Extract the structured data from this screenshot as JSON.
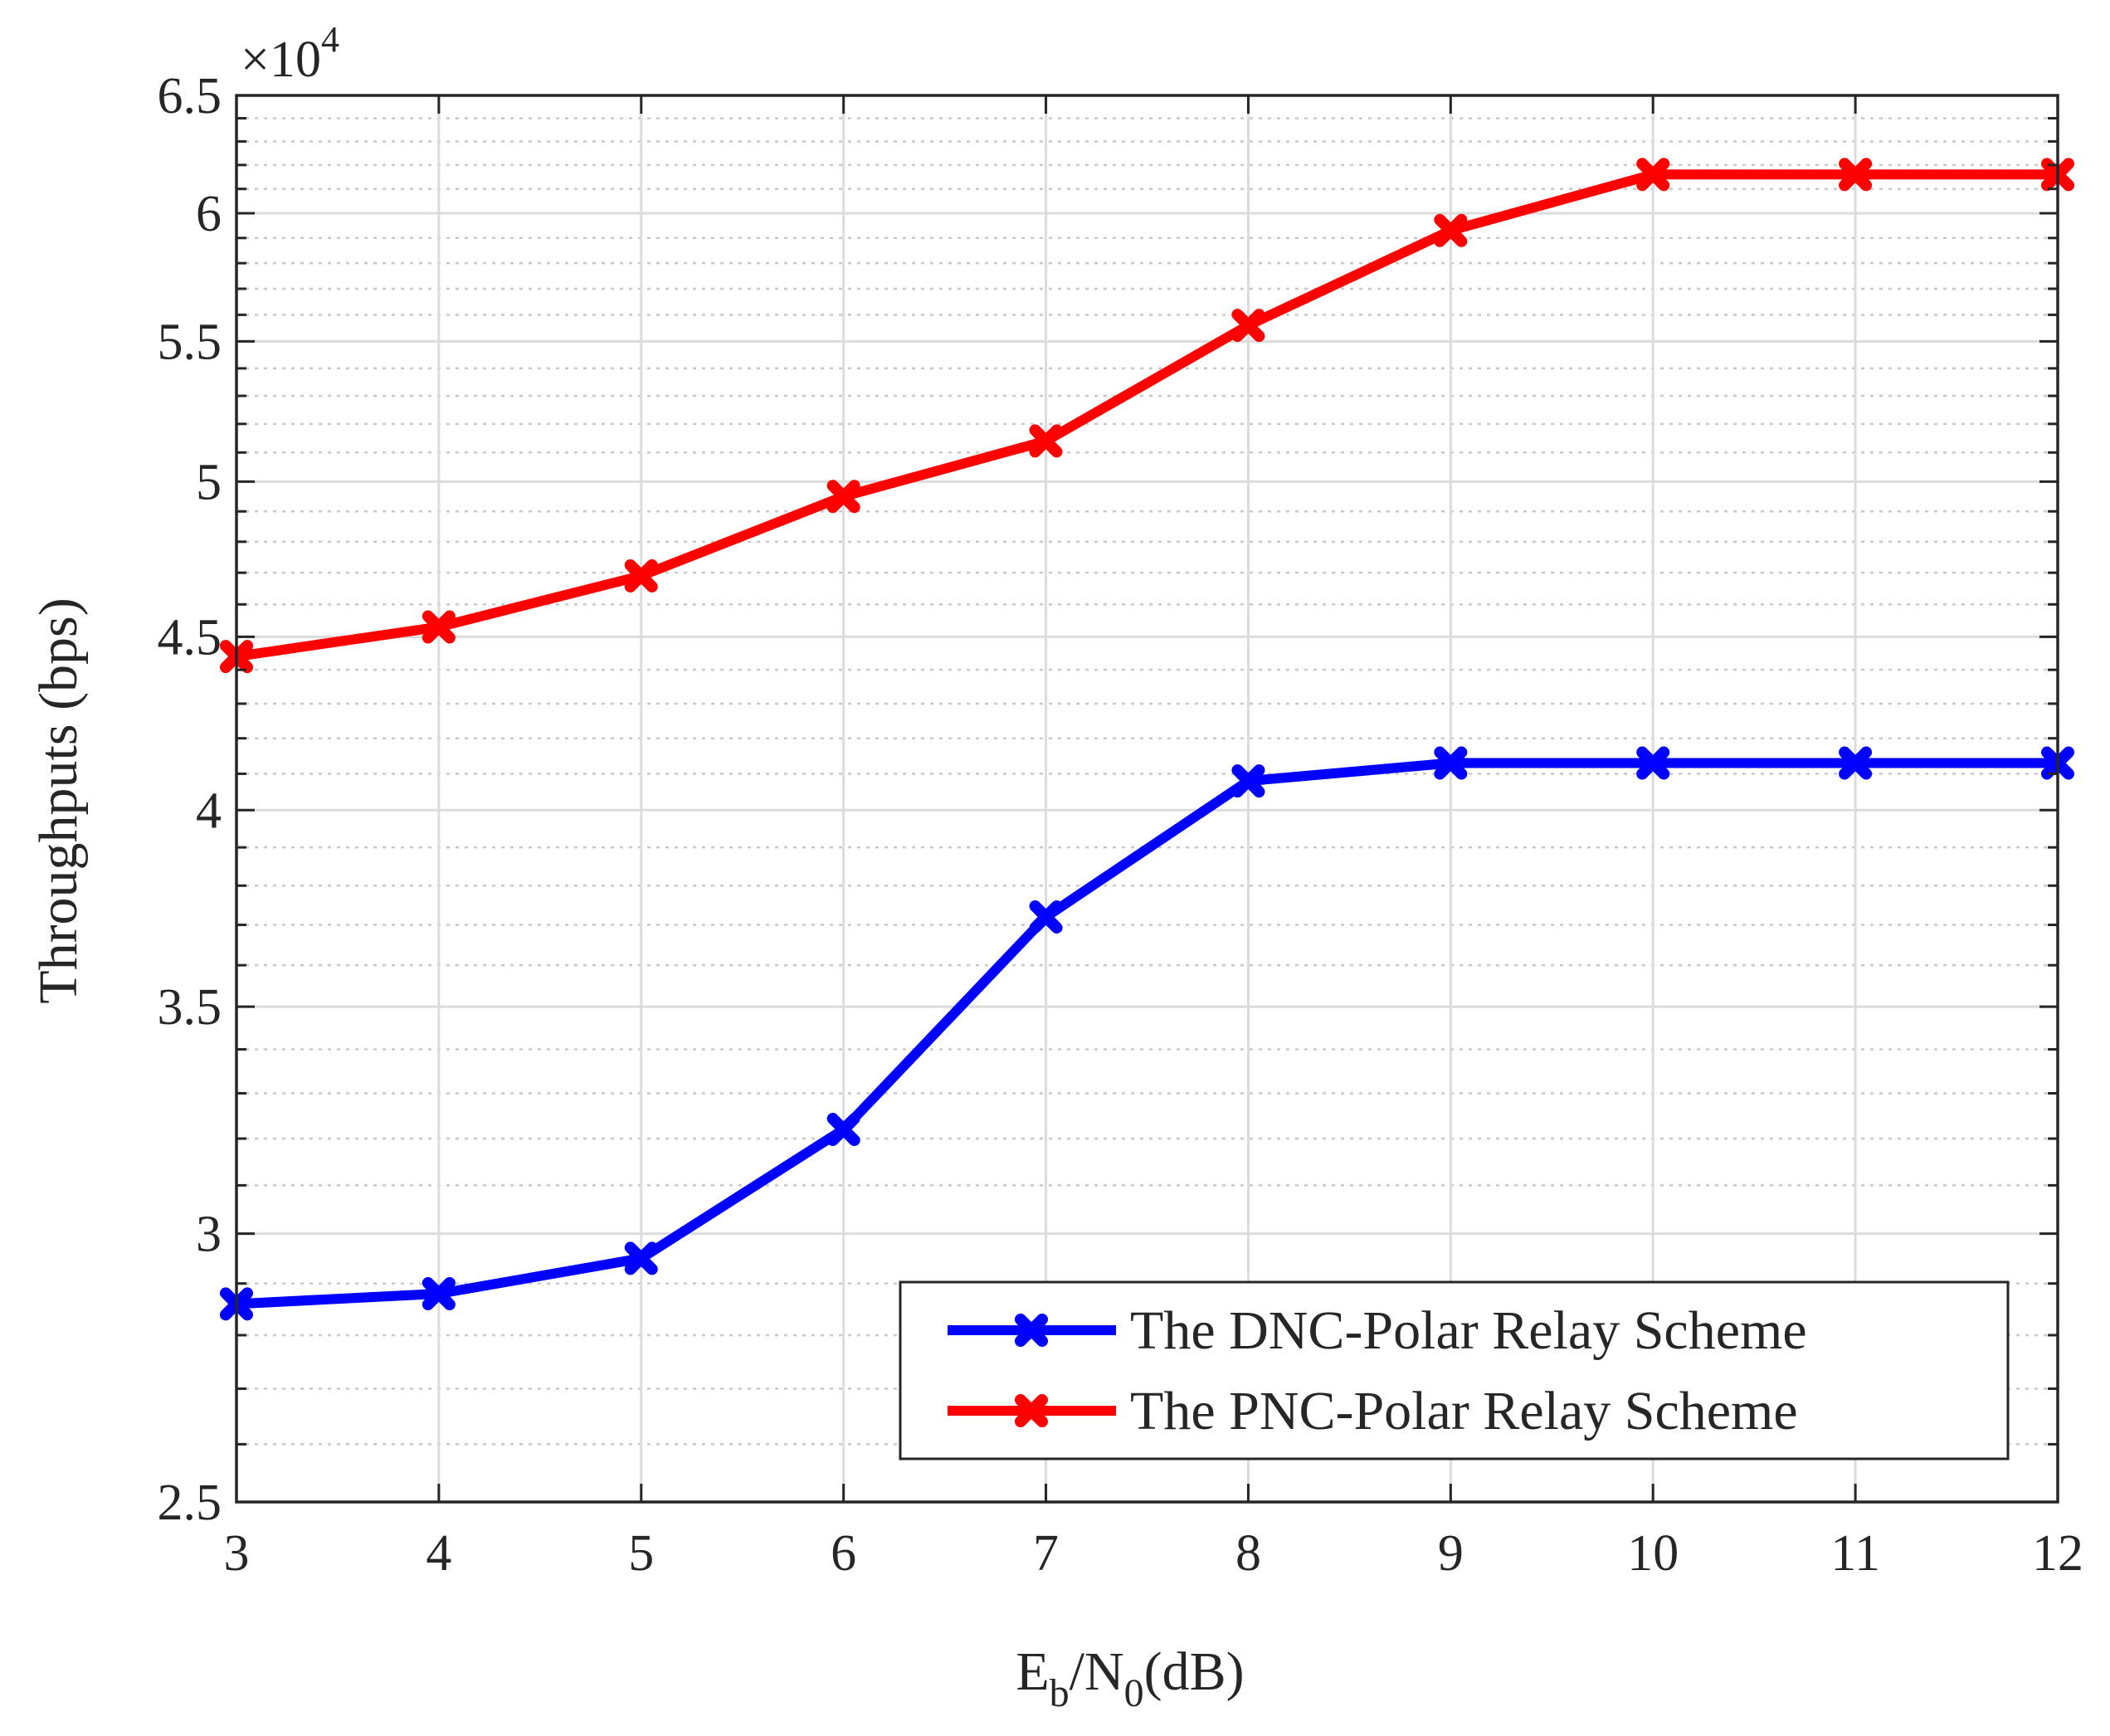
{
  "chart_data": {
    "type": "line",
    "title": "",
    "xlabel": "E_b/N_0(dB)",
    "xlabel_parts": {
      "e": "E",
      "b": "b",
      "slash": "/N",
      "zero": "0",
      "unit": "(dB)"
    },
    "ylabel": "Throughputs (bps)",
    "y_exponent_label": {
      "times": "×10",
      "power": "4"
    },
    "y_scale": "log",
    "xlim": [
      3,
      12
    ],
    "ylim": [
      2.5,
      6.5
    ],
    "x": [
      3,
      4,
      5,
      6,
      7,
      8,
      9,
      10,
      11,
      12
    ],
    "x_tick_labels": [
      "3",
      "4",
      "5",
      "6",
      "7",
      "8",
      "9",
      "10",
      "11",
      "12"
    ],
    "y_ticks": [
      2.5,
      3,
      3.5,
      4,
      4.5,
      5,
      5.5,
      6,
      6.5
    ],
    "y_tick_labels": [
      "2.5",
      "3",
      "3.5",
      "4",
      "4.5",
      "5",
      "5.5",
      "6",
      "6.5"
    ],
    "y_minor_ticks": [
      2.6,
      2.7,
      2.8,
      2.9,
      3.1,
      3.2,
      3.3,
      3.4,
      3.6,
      3.7,
      3.8,
      3.9,
      4.1,
      4.2,
      4.3,
      4.4,
      4.6,
      4.7,
      4.8,
      4.9,
      5.1,
      5.2,
      5.3,
      5.4,
      5.6,
      5.7,
      5.8,
      5.9,
      6.1,
      6.2,
      6.3,
      6.4
    ],
    "grid": true,
    "legend_position": "bottom-right",
    "series": [
      {
        "name": "The DNC-Polar Relay Scheme",
        "color": "#0000ff",
        "marker": "x",
        "values": [
          2.86,
          2.88,
          2.95,
          3.22,
          3.72,
          4.08,
          4.13,
          4.13,
          4.13,
          4.13
        ]
      },
      {
        "name": "The PNC-Polar Relay Scheme",
        "color": "#ff0000",
        "marker": "x",
        "values": [
          4.44,
          4.53,
          4.69,
          4.95,
          5.14,
          5.56,
          5.93,
          6.16,
          6.16,
          6.16
        ]
      }
    ]
  }
}
